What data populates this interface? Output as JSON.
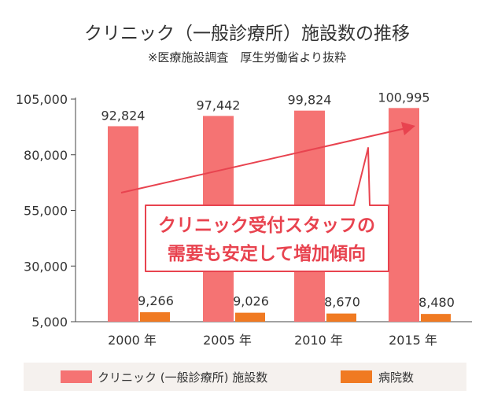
{
  "chart_data": {
    "type": "bar",
    "title": "クリニック（一般診療所）施設数の推移",
    "subtitle": "※医療施設調査　厚生労働省より抜粋",
    "categories": [
      "2000 年",
      "2005 年",
      "2010 年",
      "2015 年"
    ],
    "series": [
      {
        "name": "クリニック (一般診療所) 施設数",
        "values": [
          92824,
          97442,
          99824,
          100995
        ],
        "labels": [
          "92,824",
          "97,442",
          "99,824",
          "100,995"
        ],
        "color": "#f57373"
      },
      {
        "name": "病院数",
        "values": [
          9266,
          9026,
          8670,
          8480
        ],
        "labels": [
          "9,266",
          "9,026",
          "8,670",
          "8,480"
        ],
        "color": "#f07a22"
      }
    ],
    "yticks": [
      5000,
      30000,
      55000,
      80000,
      105000
    ],
    "ytick_labels": [
      "5,000",
      "30,000",
      "55,000",
      "80,000",
      "105,000"
    ],
    "ylim": [
      5000,
      105000
    ],
    "grid": false,
    "legend_position": "bottom",
    "annotation": {
      "lines": [
        "クリニック受付スタッフの",
        "需要も安定して増加傾向"
      ],
      "color": "#e8434f"
    }
  }
}
